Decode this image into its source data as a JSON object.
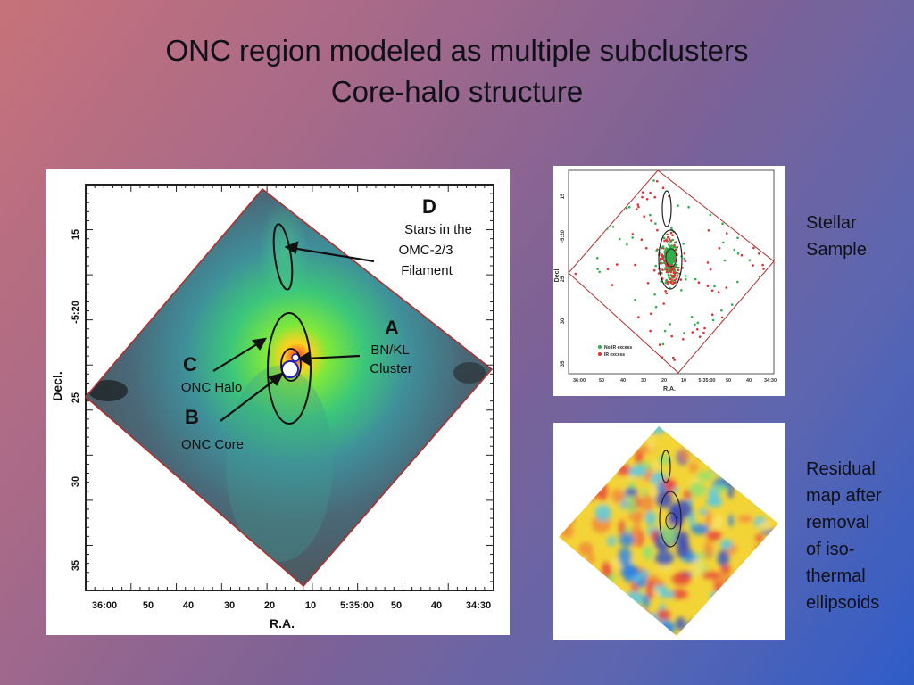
{
  "slide": {
    "title_line1": "ONC region modeled as multiple subclusters",
    "title_line2": "Core-halo structure"
  },
  "main_plot": {
    "ylabel": "Decl.",
    "xlabel": "R.A.",
    "y_ticks": [
      "15",
      "-5:20",
      "25",
      "30",
      "35"
    ],
    "x_ticks": [
      "36:00",
      "50",
      "40",
      "30",
      "20",
      "10",
      "5:35:00",
      "50",
      "40",
      "34:30"
    ],
    "annotations": {
      "d_letter": "D",
      "d_line1": "Stars in the",
      "d_line2": "OMC-2/3",
      "d_line3": "Filament",
      "a_letter": "A",
      "a_line1": "BN/KL",
      "a_line2": "Cluster",
      "c_letter": "C",
      "c_label": "ONC Halo",
      "b_letter": "B",
      "b_label": "ONC Core"
    }
  },
  "stellar_plot": {
    "ylabel": "Decl.",
    "xlabel": "R.A.",
    "y_ticks": [
      "15",
      "-5:20",
      "25",
      "30",
      "35"
    ],
    "x_ticks": [
      "36:00",
      "50",
      "40",
      "30",
      "20",
      "10",
      "5:35:00",
      "50",
      "40",
      "34:30"
    ],
    "legend": [
      {
        "label": "No IR excess",
        "color": "#2fb04a"
      },
      {
        "label": "IR excess",
        "color": "#e03030"
      }
    ]
  },
  "captions": {
    "stellar": [
      "Stellar",
      "Sample"
    ],
    "residual": [
      "Residual",
      "map after",
      "removal",
      "of iso-",
      "thermal",
      "ellipsoids"
    ]
  }
}
